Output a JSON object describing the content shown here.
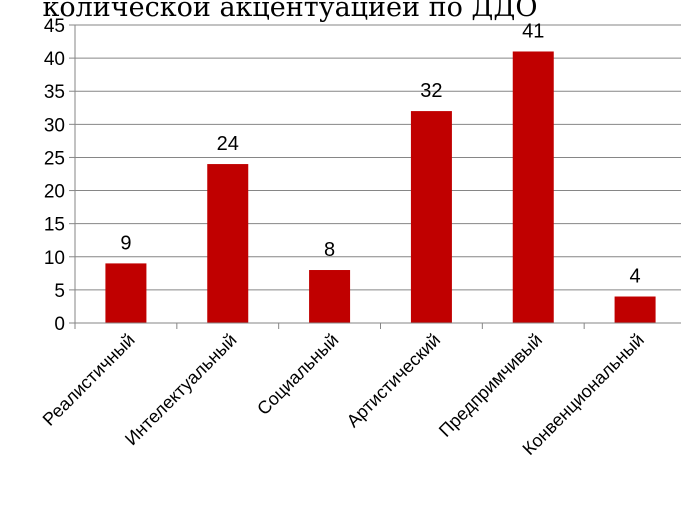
{
  "chart_data": {
    "type": "bar",
    "title": "количеcкой акцентуацией по ДДО",
    "categories": [
      "Реалистичный",
      "Интелектуальный",
      "Социальный",
      "Артистический",
      "Предпримчивый",
      "Конвенциональный"
    ],
    "values": [
      9,
      24,
      8,
      32,
      41,
      4
    ],
    "data_labels": [
      "9",
      "24",
      "8",
      "32",
      "41",
      "4"
    ],
    "ylim": [
      0,
      45
    ],
    "yticks": [
      0,
      5,
      10,
      15,
      20,
      25,
      30,
      35,
      40,
      45
    ],
    "grid": true,
    "legend": "none",
    "bar_color": "#c00000"
  }
}
